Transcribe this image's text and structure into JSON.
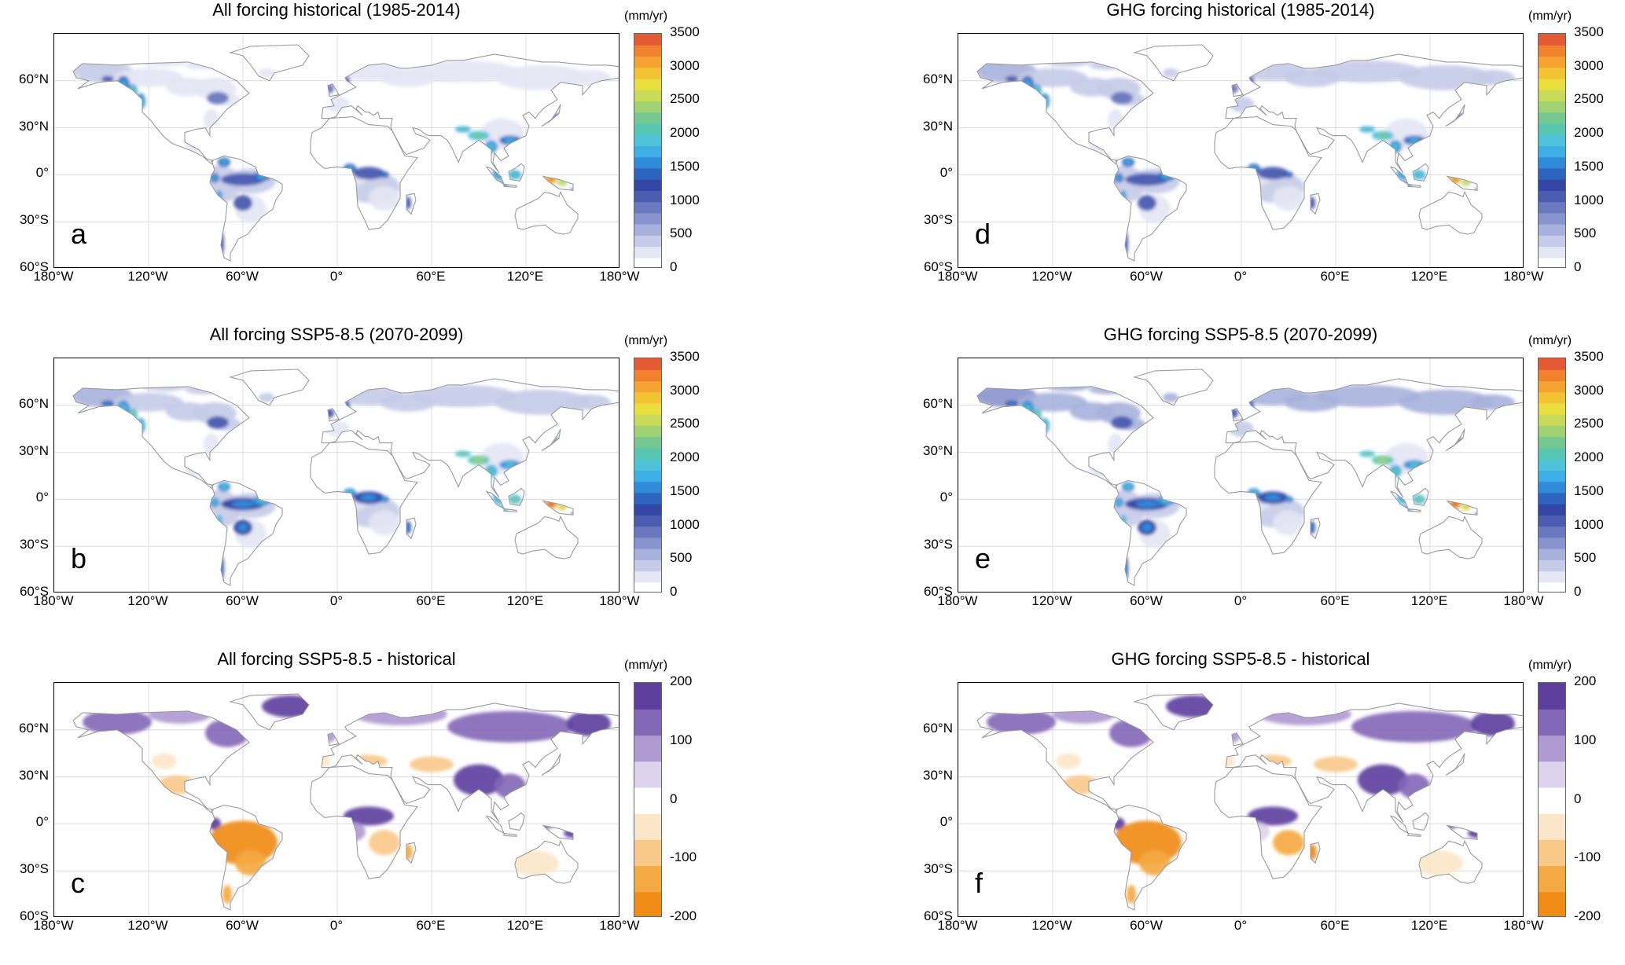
{
  "figure": {
    "colors": {
      "precip_ramp": [
        "#ffffff",
        "#e4e6f4",
        "#c5cbe8",
        "#a7b1dc",
        "#8894cd",
        "#6a78bf",
        "#4a5bb0",
        "#3346a6",
        "#2d63c1",
        "#2f8bd9",
        "#3eaee6",
        "#4dc2d8",
        "#58c7b2",
        "#75c990",
        "#9fd272",
        "#c8da57",
        "#e8de3e",
        "#f4c333",
        "#f6a230",
        "#f2812e",
        "#e45a34"
      ],
      "diff_ramp": [
        "#f08c15",
        "#f5a943",
        "#f9c98a",
        "#fce6c9",
        "#ffffff",
        "#ddd3ec",
        "#b09ad2",
        "#8468b8",
        "#5e3f9e"
      ],
      "coast": "#9a9a9a",
      "grid": "#dcdcdc"
    },
    "x_ticks": [
      "180°W",
      "120°W",
      "60°W",
      "0°",
      "60°E",
      "120°E",
      "180°W"
    ],
    "y_ticks": [
      "60°N",
      "30°N",
      "0°",
      "30°S",
      "60°S"
    ]
  },
  "panels": [
    {
      "id": "a",
      "title": "All forcing historical (1985-2014)",
      "unit": "(mm/yr)",
      "scale": "precip",
      "cbar_ticks": [
        "3500",
        "3000",
        "2500",
        "2000",
        "1500",
        "1000",
        "500",
        "0"
      ]
    },
    {
      "id": "d",
      "title": "GHG forcing historical (1985-2014)",
      "unit": "(mm/yr)",
      "scale": "precip",
      "cbar_ticks": [
        "3500",
        "3000",
        "2500",
        "2000",
        "1500",
        "1000",
        "500",
        "0"
      ]
    },
    {
      "id": "b",
      "title": "All forcing SSP5-8.5 (2070-2099)",
      "unit": "(mm/yr)",
      "scale": "precip",
      "cbar_ticks": [
        "3500",
        "3000",
        "2500",
        "2000",
        "1500",
        "1000",
        "500",
        "0"
      ]
    },
    {
      "id": "e",
      "title": "GHG forcing SSP5-8.5 (2070-2099)",
      "unit": "(mm/yr)",
      "scale": "precip",
      "cbar_ticks": [
        "3500",
        "3000",
        "2500",
        "2000",
        "1500",
        "1000",
        "500",
        "0"
      ]
    },
    {
      "id": "c",
      "title": "All forcing SSP5-8.5 - historical",
      "unit": "(mm/yr)",
      "scale": "diff",
      "cbar_ticks": [
        "200",
        "100",
        "0",
        "-100",
        "-200"
      ]
    },
    {
      "id": "f",
      "title": "GHG forcing SSP5-8.5 - historical",
      "unit": "(mm/yr)",
      "scale": "diff",
      "cbar_ticks": [
        "200",
        "100",
        "0",
        "-100",
        "-200"
      ]
    }
  ],
  "chart_data": [
    {
      "type": "heatmap",
      "panel": "a",
      "title": "All forcing historical (1985-2014)",
      "colorbar_label": "(mm/yr)",
      "clim": [
        0,
        3500
      ],
      "xlim_deg": [
        -180,
        180
      ],
      "ylim_deg": [
        -60,
        90
      ]
    },
    {
      "type": "heatmap",
      "panel": "d",
      "title": "GHG forcing historical (1985-2014)",
      "colorbar_label": "(mm/yr)",
      "clim": [
        0,
        3500
      ],
      "xlim_deg": [
        -180,
        180
      ],
      "ylim_deg": [
        -60,
        90
      ]
    },
    {
      "type": "heatmap",
      "panel": "b",
      "title": "All forcing SSP5-8.5 (2070-2099)",
      "colorbar_label": "(mm/yr)",
      "clim": [
        0,
        3500
      ],
      "xlim_deg": [
        -180,
        180
      ],
      "ylim_deg": [
        -60,
        90
      ]
    },
    {
      "type": "heatmap",
      "panel": "e",
      "title": "GHG forcing SSP5-8.5 (2070-2099)",
      "colorbar_label": "(mm/yr)",
      "clim": [
        0,
        3500
      ],
      "xlim_deg": [
        -180,
        180
      ],
      "ylim_deg": [
        -60,
        90
      ]
    },
    {
      "type": "heatmap",
      "panel": "c",
      "title": "All forcing SSP5-8.5 - historical",
      "colorbar_label": "(mm/yr)",
      "clim": [
        -200,
        200
      ],
      "xlim_deg": [
        -180,
        180
      ],
      "ylim_deg": [
        -60,
        90
      ]
    },
    {
      "type": "heatmap",
      "panel": "f",
      "title": "GHG forcing SSP5-8.5 - historical",
      "colorbar_label": "(mm/yr)",
      "clim": [
        -200,
        200
      ],
      "xlim_deg": [
        -180,
        180
      ],
      "ylim_deg": [
        -60,
        90
      ]
    }
  ]
}
